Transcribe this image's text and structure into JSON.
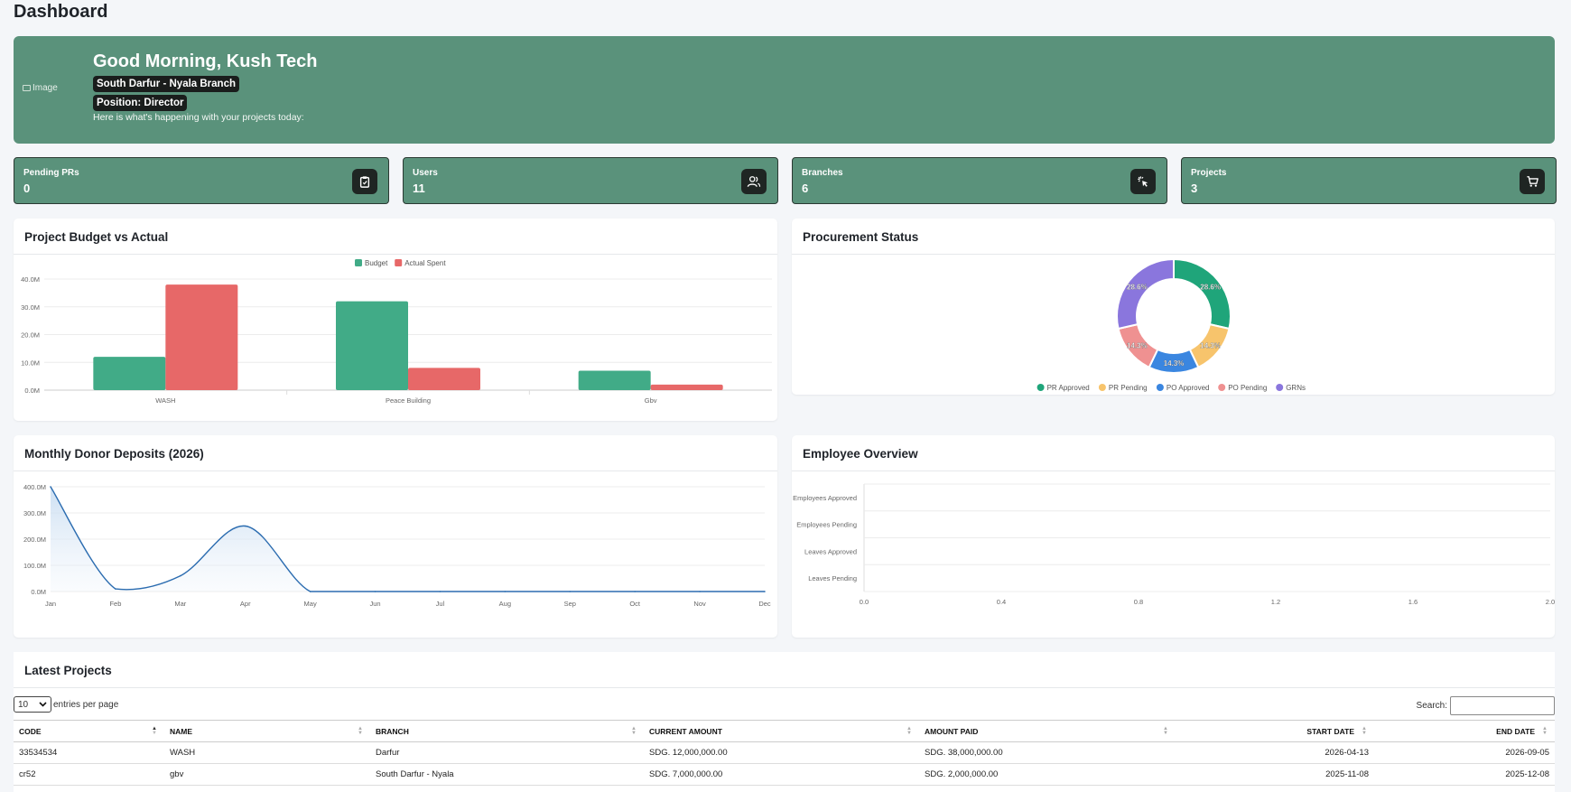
{
  "page": {
    "title": "Dashboard"
  },
  "welcome": {
    "image_alt": "Image",
    "greeting": "Good Morning, Kush Tech",
    "branch": "South Darfur - Nyala Branch",
    "position": "Position: Director",
    "subtitle": "Here is what's happening with your projects today:",
    "bg_color": "#5a927b"
  },
  "stats": [
    {
      "label": "Pending PRs",
      "value": "0",
      "icon": "clipboard-icon"
    },
    {
      "label": "Users",
      "value": "11",
      "icon": "users-icon"
    },
    {
      "label": "Branches",
      "value": "6",
      "icon": "pointer-click-icon"
    },
    {
      "label": "Projects",
      "value": "3",
      "icon": "cart-icon"
    }
  ],
  "budget_card": {
    "title": "Project Budget vs Actual"
  },
  "procurement_card": {
    "title": "Procurement Status"
  },
  "deposits_card": {
    "title": "Monthly Donor Deposits (2026)"
  },
  "employee_card": {
    "title": "Employee Overview"
  },
  "chart_data": [
    {
      "type": "bar",
      "title": "",
      "categories": [
        "WASH",
        "Peace Building",
        "Gbv"
      ],
      "series": [
        {
          "name": "Budget",
          "values": [
            12000000,
            32000000,
            7000000
          ],
          "color": "#41ab87"
        },
        {
          "name": "Actual Spent",
          "values": [
            38000000,
            8000000,
            2000000
          ],
          "color": "#e76868"
        }
      ],
      "yticks": [
        "0.0M",
        "10.0M",
        "20.0M",
        "30.0M",
        "40.0M"
      ],
      "ylim": [
        0,
        40000000
      ],
      "legend": "top-center",
      "grid": true
    },
    {
      "type": "pie",
      "subtype": "doughnut",
      "labels": [
        "PR Approved",
        "PR Pending",
        "PO Approved",
        "PO Pending",
        "GRNs"
      ],
      "values": [
        28.6,
        14.3,
        14.3,
        14.3,
        28.6
      ],
      "display_labels": [
        "28.6%",
        "14.3%",
        "14.3%",
        "14.3%",
        "28.6%"
      ],
      "colors": [
        "#1fa57a",
        "#f7c46c",
        "#3a86e0",
        "#ef9191",
        "#8a76dd"
      ],
      "legend": "bottom"
    },
    {
      "type": "area",
      "x": [
        "Jan",
        "Feb",
        "Mar",
        "Apr",
        "May",
        "Jun",
        "Jul",
        "Aug",
        "Sep",
        "Oct",
        "Nov",
        "Dec"
      ],
      "values": [
        400000000,
        10000000,
        60000000,
        250000000,
        0,
        0,
        0,
        0,
        0,
        0,
        0,
        0
      ],
      "yticks": [
        "0.0M",
        "100.0M",
        "200.0M",
        "300.0M",
        "400.0M"
      ],
      "ylim": [
        0,
        400000000
      ],
      "color": "#2b6cb0",
      "grid": true
    },
    {
      "type": "bar",
      "orientation": "horizontal",
      "categories": [
        "Employees Approved",
        "Employees Pending",
        "Leaves Approved",
        "Leaves Pending"
      ],
      "values": [
        0,
        0,
        0,
        0
      ],
      "xticks": [
        "0.0",
        "0.4",
        "0.8",
        "1.2",
        "1.6",
        "2.0"
      ],
      "xlim": [
        0,
        2.0
      ],
      "grid": true
    }
  ],
  "projects": {
    "title": "Latest Projects",
    "entries_value": "10",
    "entries_label": "entries per page",
    "search_label": "Search:",
    "columns": [
      "CODE",
      "NAME",
      "BRANCH",
      "CURRENT AMOUNT",
      "AMOUNT PAID",
      "START DATE",
      "END DATE"
    ],
    "rows": [
      [
        "33534534",
        "WASH",
        "Darfur",
        "SDG. 12,000,000.00",
        "SDG. 38,000,000.00",
        "2026-04-13",
        "2026-09-05"
      ],
      [
        "cr52",
        "gbv",
        "South Darfur - Nyala",
        "SDG. 7,000,000.00",
        "SDG. 2,000,000.00",
        "2025-11-08",
        "2025-12-08"
      ]
    ]
  }
}
